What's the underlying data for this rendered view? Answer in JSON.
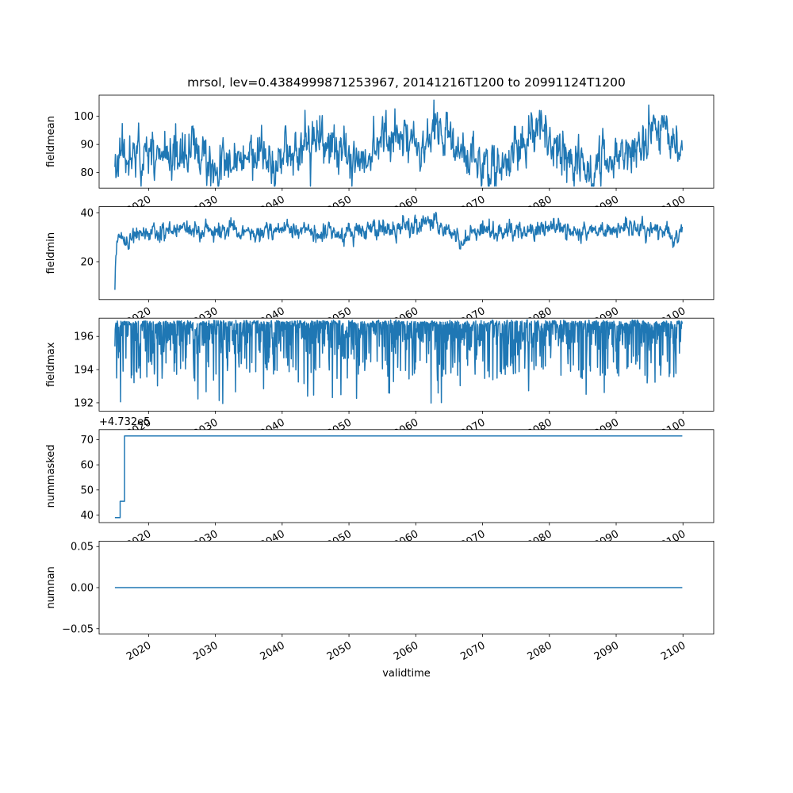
{
  "title": "mrsol, lev=0.4384999871253967, 20141216T1200 to 20991124T1200",
  "xlabel": "validtime",
  "line_color": "#1f77b4",
  "axis_color": "#000000",
  "background": "#ffffff",
  "x_axis": {
    "lim": [
      2012.6,
      2104.6
    ],
    "ticks": [
      2020,
      2030,
      2040,
      2050,
      2060,
      2070,
      2080,
      2090,
      2100
    ],
    "tick_labels": [
      "2020",
      "2030",
      "2040",
      "2050",
      "2060",
      "2070",
      "2080",
      "2090",
      "2100"
    ],
    "data_start_label": "20141216T1200",
    "data_end_label": "20991124T1200"
  },
  "chart_data": [
    {
      "type": "line",
      "ylabel": "fieldmean",
      "ylim": [
        74.5,
        107.5
      ],
      "yticks": [
        80,
        90,
        100
      ],
      "ytick_labels": [
        "80",
        "90",
        "100"
      ],
      "x_start": 2014.96,
      "x_end": 2099.9,
      "series": {
        "kind": "ar-noise",
        "n": 1150,
        "seed": 11,
        "base": 85.5,
        "sd": 4.2,
        "alpha": 0.45,
        "jitter": 2.5,
        "clamp": [
          75.2,
          106.6
        ],
        "bumps": [
          [
            2017.5,
            2,
            1.5
          ],
          [
            2026,
            2,
            2
          ],
          [
            2032,
            -3,
            2
          ],
          [
            2046,
            5,
            2
          ],
          [
            2051,
            -2,
            1.2
          ],
          [
            2057,
            8.5,
            1.8
          ],
          [
            2063.5,
            9.5,
            1.8
          ],
          [
            2072,
            -3,
            1.5
          ],
          [
            2078.5,
            9.5,
            2
          ],
          [
            2085,
            -3,
            1.5
          ],
          [
            2096,
            9.5,
            1.8
          ]
        ]
      }
    },
    {
      "type": "line",
      "ylabel": "fieldmin",
      "ylim": [
        4.5,
        42.5
      ],
      "yticks": [
        20,
        40
      ],
      "ytick_labels": [
        "20",
        "40"
      ],
      "x_start": 2014.96,
      "x_end": 2099.9,
      "series": {
        "kind": "ar-noise",
        "n": 1150,
        "seed": 23,
        "base": 32,
        "sd": 1.9,
        "alpha": 0.5,
        "jitter": 1.4,
        "clamp": [
          8,
          41
        ],
        "start": {
          "value": 8.5,
          "dur": 0.55
        },
        "bumps": [
          [
            2017,
            -3.5,
            1.2
          ],
          [
            2023,
            1.5,
            3
          ],
          [
            2040,
            1,
            3
          ],
          [
            2057,
            2,
            3
          ],
          [
            2063,
            2.5,
            2
          ],
          [
            2067,
            -4,
            0.8
          ],
          [
            2080,
            1.5,
            3
          ],
          [
            2090,
            1,
            2
          ]
        ]
      }
    },
    {
      "type": "line",
      "ylabel": "fieldmax",
      "ylim": [
        191.5,
        197.1
      ],
      "yticks": [
        192,
        194,
        196
      ],
      "ytick_labels": [
        "192",
        "194",
        "196"
      ],
      "x_start": 2014.96,
      "x_end": 2099.9,
      "series": {
        "kind": "down-spikes",
        "n": 1600,
        "seed": 37,
        "base": 196.95,
        "jitter": 0.12,
        "clamp": [
          191.95,
          197.05
        ],
        "levels": [
          [
            0.5,
            0,
            0.3
          ],
          [
            0.8,
            0.3,
            1.2
          ],
          [
            0.98,
            1.5,
            2.0
          ],
          [
            1.01,
            3.3,
            1.7
          ]
        ]
      }
    },
    {
      "type": "line",
      "ylabel": "nummasked",
      "y_offset": "+4.732e5",
      "ylim": [
        37,
        74
      ],
      "yticks": [
        40,
        50,
        60,
        70
      ],
      "ytick_labels": [
        "40",
        "50",
        "60",
        "70"
      ],
      "x_start": 2014.96,
      "x_end": 2099.9,
      "series": {
        "kind": "steps",
        "points": [
          [
            2014.96,
            39
          ],
          [
            2015.75,
            39
          ],
          [
            2015.75,
            45.5
          ],
          [
            2016.4,
            45.5
          ],
          [
            2016.4,
            71.5
          ],
          [
            2099.9,
            71.5
          ]
        ]
      }
    },
    {
      "type": "line",
      "ylabel": "numnan",
      "ylim": [
        -0.0566,
        0.0566
      ],
      "yticks": [
        -0.05,
        0,
        0.05
      ],
      "ytick_labels": [
        "−0.05",
        "0.00",
        "0.05"
      ],
      "x_start": 2014.96,
      "x_end": 2099.9,
      "series": {
        "kind": "steps",
        "points": [
          [
            2014.96,
            0
          ],
          [
            2099.9,
            0
          ]
        ]
      }
    }
  ]
}
